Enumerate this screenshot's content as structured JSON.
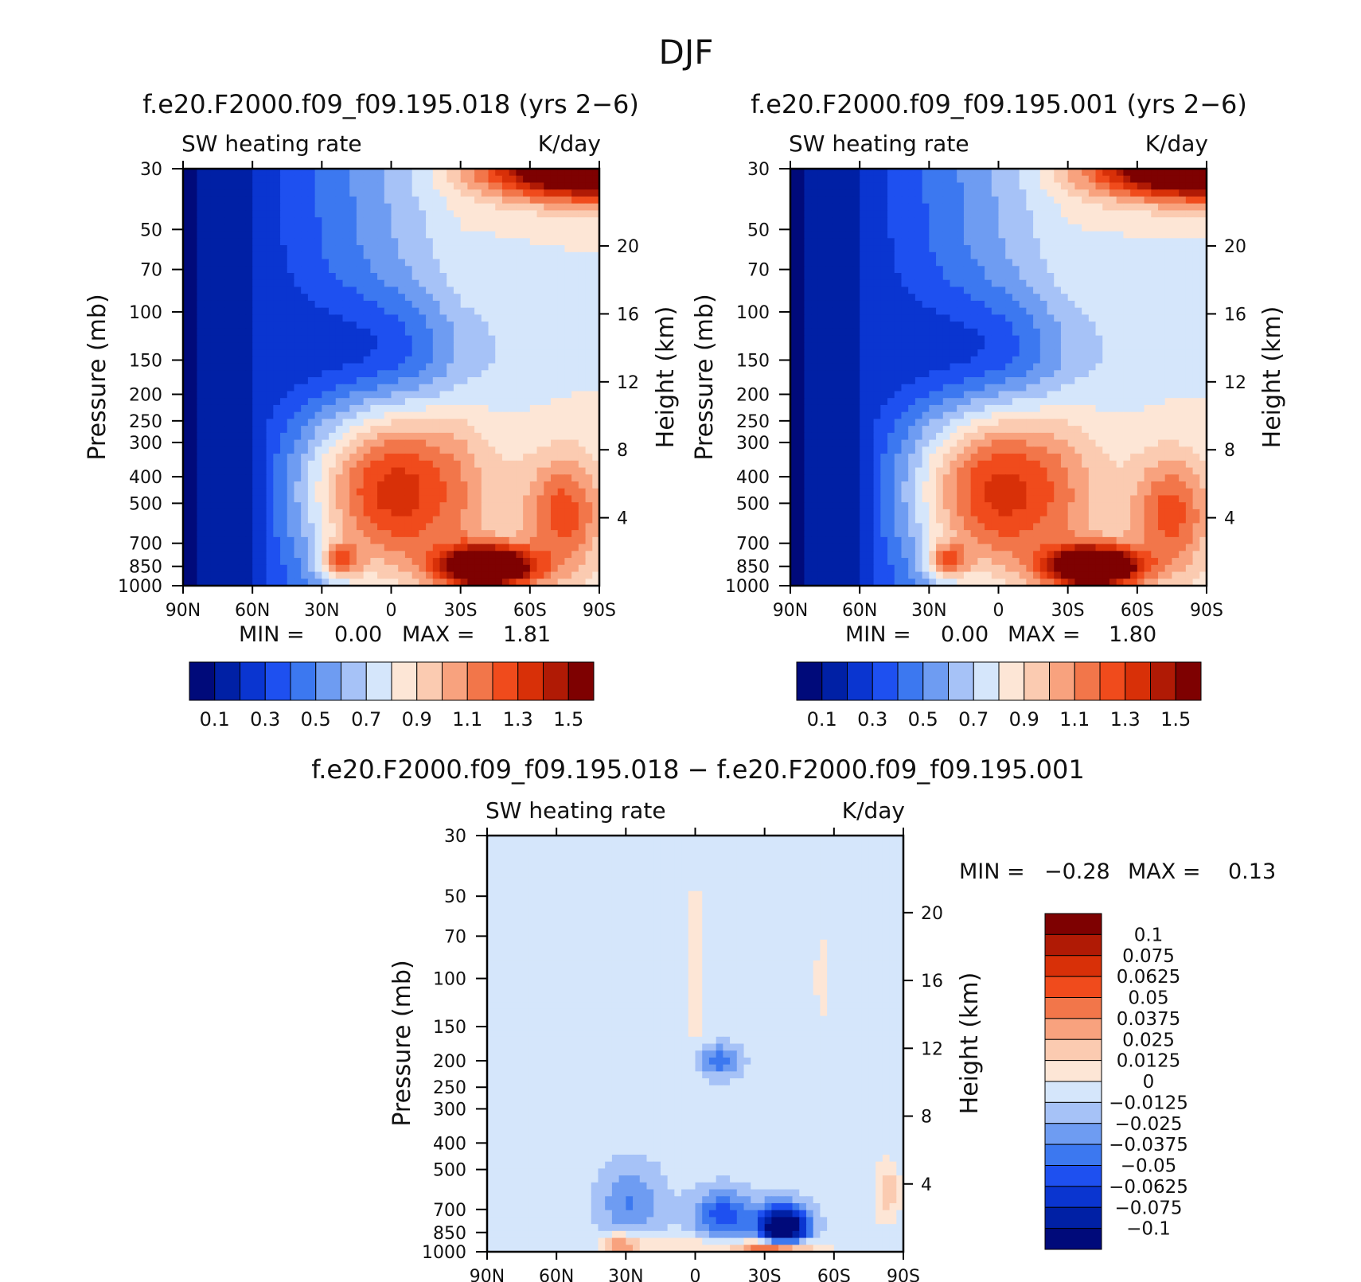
{
  "figure": {
    "title": "DJF",
    "colors": {
      "seq": [
        "#000a7a",
        "#0020a5",
        "#0a35d0",
        "#1e50f0",
        "#3c78f0",
        "#6e9cf2",
        "#a6c2f7",
        "#d5e6fb",
        "#fde6d6",
        "#fbcbb1",
        "#f8a27e",
        "#f2764a",
        "#f04b1c",
        "#d83008",
        "#b01a05",
        "#7e0101"
      ],
      "diff": [
        "#000a7a",
        "#0020a5",
        "#0a35d0",
        "#1e50f0",
        "#3c78f0",
        "#6e9cf2",
        "#a6c2f7",
        "#d5e6fb",
        "#fde6d6",
        "#fbcbb1",
        "#f8a27e",
        "#f2764a",
        "#f04b1c",
        "#d83008",
        "#b01a05",
        "#7e0101"
      ]
    }
  },
  "chart_data": [
    {
      "id": "panel-a",
      "type": "heatmap",
      "title": "f.e20.F2000.f09_f09.195.018 (yrs 2−6)",
      "left_label": "SW heating rate",
      "right_label": "K/day",
      "ylabel": "Pressure (mb)",
      "ylabel_right": "Height (km)",
      "x_ticks": [
        "90N",
        "60N",
        "30N",
        "0",
        "30S",
        "60S",
        "90S"
      ],
      "y_ticks": [
        "30",
        "50",
        "70",
        "100",
        "150",
        "200",
        "250",
        "300",
        "400",
        "500",
        "700",
        "850",
        "1000"
      ],
      "y_tick_values": [
        30,
        50,
        70,
        100,
        150,
        200,
        250,
        300,
        400,
        500,
        700,
        850,
        1000
      ],
      "height_ticks": [
        "20",
        "16",
        "12",
        "8",
        "4"
      ],
      "height_tick_values": [
        20,
        16,
        12,
        8,
        4
      ],
      "stats_min_label": "MIN =",
      "stats_min": "0.00",
      "stats_max_label": "MAX =",
      "stats_max": "1.81",
      "levels": [
        0.05,
        0.1,
        0.2,
        0.3,
        0.4,
        0.5,
        0.6,
        0.7,
        0.8,
        0.9,
        1.0,
        1.1,
        1.2,
        1.3,
        1.4,
        1.5
      ],
      "colorbar_labels": [
        "0.1",
        "0.3",
        "0.5",
        "0.7",
        "0.9",
        "1.1",
        "1.3",
        "1.5"
      ],
      "field": "control"
    },
    {
      "id": "panel-b",
      "type": "heatmap",
      "title": "f.e20.F2000.f09_f09.195.001 (yrs 2−6)",
      "left_label": "SW heating rate",
      "right_label": "K/day",
      "ylabel": "Pressure (mb)",
      "ylabel_right": "Height (km)",
      "x_ticks": [
        "90N",
        "60N",
        "30N",
        "0",
        "30S",
        "60S",
        "90S"
      ],
      "y_ticks": [
        "30",
        "50",
        "70",
        "100",
        "150",
        "200",
        "250",
        "300",
        "400",
        "500",
        "700",
        "850",
        "1000"
      ],
      "y_tick_values": [
        30,
        50,
        70,
        100,
        150,
        200,
        250,
        300,
        400,
        500,
        700,
        850,
        1000
      ],
      "height_ticks": [
        "20",
        "16",
        "12",
        "8",
        "4"
      ],
      "height_tick_values": [
        20,
        16,
        12,
        8,
        4
      ],
      "stats_min_label": "MIN =",
      "stats_min": "0.00",
      "stats_max_label": "MAX =",
      "stats_max": "1.80",
      "levels": [
        0.05,
        0.1,
        0.2,
        0.3,
        0.4,
        0.5,
        0.6,
        0.7,
        0.8,
        0.9,
        1.0,
        1.1,
        1.2,
        1.3,
        1.4,
        1.5
      ],
      "colorbar_labels": [
        "0.1",
        "0.3",
        "0.5",
        "0.7",
        "0.9",
        "1.1",
        "1.3",
        "1.5"
      ],
      "field": "control"
    },
    {
      "id": "panel-c",
      "type": "heatmap",
      "title": "f.e20.F2000.f09_f09.195.018 − f.e20.F2000.f09_f09.195.001",
      "left_label": "SW heating rate",
      "right_label": "K/day",
      "ylabel": "Pressure (mb)",
      "ylabel_right": "Height (km)",
      "x_ticks": [
        "90N",
        "60N",
        "30N",
        "0",
        "30S",
        "60S",
        "90S"
      ],
      "y_ticks": [
        "30",
        "50",
        "70",
        "100",
        "150",
        "200",
        "250",
        "300",
        "400",
        "500",
        "700",
        "850",
        "1000"
      ],
      "y_tick_values": [
        30,
        50,
        70,
        100,
        150,
        200,
        250,
        300,
        400,
        500,
        700,
        850,
        1000
      ],
      "height_ticks": [
        "20",
        "16",
        "12",
        "8",
        "4"
      ],
      "height_tick_values": [
        20,
        16,
        12,
        8,
        4
      ],
      "stats_min_label": "MIN =",
      "stats_min": "−0.28",
      "stats_max_label": "MAX =",
      "stats_max": "0.13",
      "levels": [
        -0.1,
        -0.075,
        -0.0625,
        -0.05,
        -0.0375,
        -0.025,
        -0.0125,
        0,
        0.0125,
        0.025,
        0.0375,
        0.05,
        0.0625,
        0.075,
        0.1
      ],
      "colorbar_labels": [
        "0.1",
        "0.075",
        "0.0625",
        "0.05",
        "0.0375",
        "0.025",
        "0.0125",
        "0",
        "−0.0125",
        "−0.025",
        "−0.0375",
        "−0.05",
        "−0.0625",
        "−0.075",
        "−0.1"
      ],
      "field": "difference"
    }
  ]
}
